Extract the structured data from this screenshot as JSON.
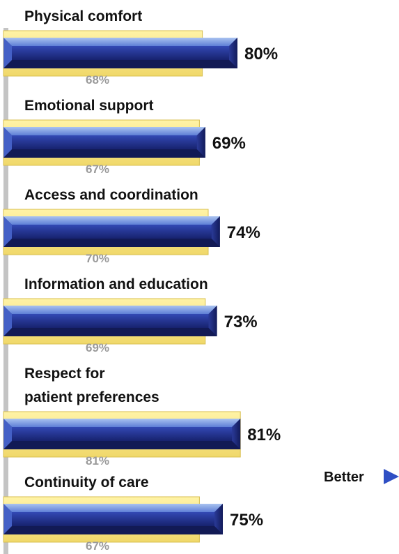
{
  "chart_data": {
    "type": "bar",
    "orientation": "horizontal",
    "categories": [
      [
        "Physical comfort"
      ],
      [
        "Emotional support"
      ],
      [
        "Access and coordination"
      ],
      [
        "Information and education"
      ],
      [
        "Respect for",
        "patient preferences"
      ],
      [
        "Continuity of care"
      ]
    ],
    "series": [
      {
        "values": [
          80,
          69,
          74,
          73,
          81,
          75
        ],
        "color": "#2d3f9e"
      },
      {
        "values": [
          68,
          67,
          70,
          69,
          81,
          67
        ],
        "color": "#f5e48a"
      }
    ],
    "value_suffix": "%",
    "xlim": [
      0,
      100
    ],
    "annotation": {
      "text": "Better",
      "icon": "right-triangle-icon",
      "color": "#2f4fc4"
    },
    "grid": false,
    "legend": "none"
  }
}
